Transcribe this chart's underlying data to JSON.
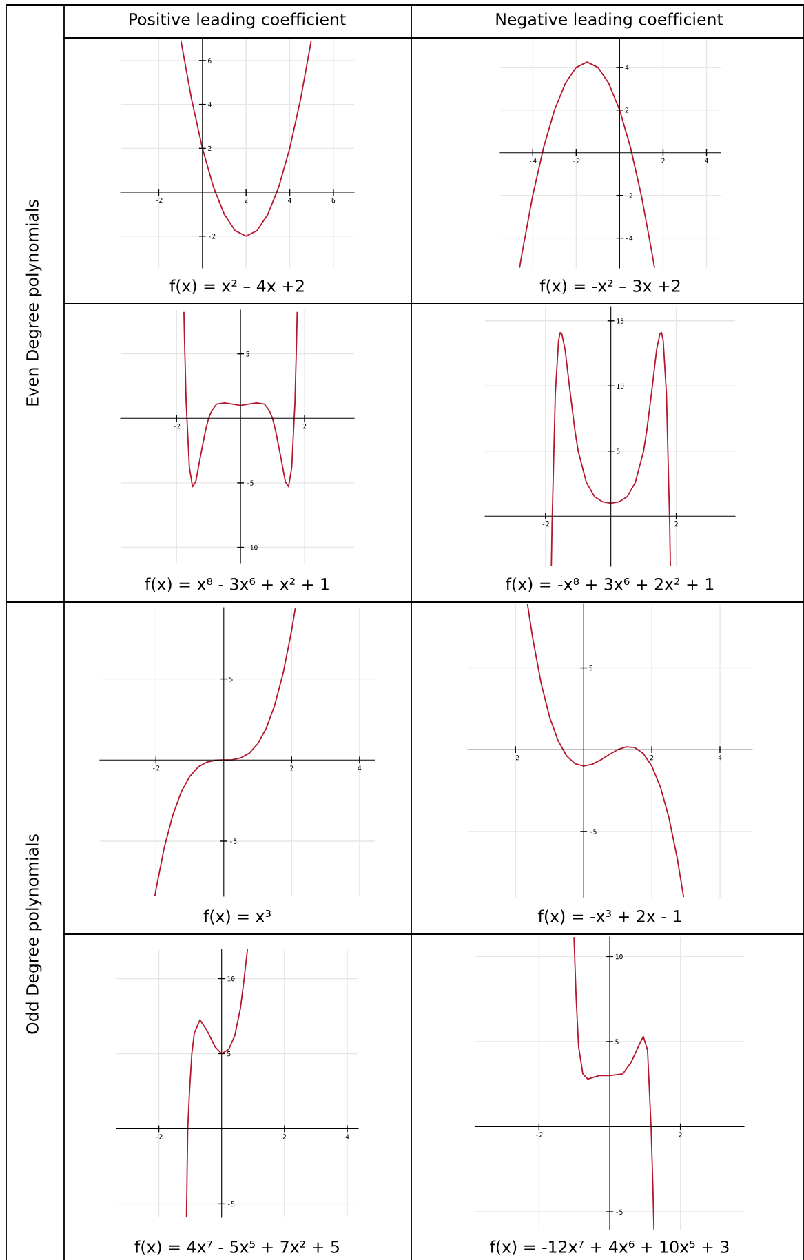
{
  "chart_data": [
    {
      "type": "other",
      "annotations": [
        "Positive leading coefficient",
        "Negative leading coefficient",
        "Even Degree polynomials",
        "Odd Degree polynomials"
      ]
    },
    {
      "type": "line",
      "xlabel": "f(x) = x² – 4x +2",
      "xlim": [
        -3.75,
        6.95
      ],
      "ylim": [
        -3.45,
        7.0
      ],
      "xticks": [
        -2,
        2,
        4,
        6
      ],
      "yticks": [
        -2,
        2,
        4,
        6
      ],
      "grid": true,
      "x": [
        -0.98,
        -0.5,
        0,
        0.5,
        1,
        1.5,
        2,
        2.5,
        3,
        3.5,
        4,
        4.5,
        4.98
      ],
      "series": [
        {
          "color": "#b5162e",
          "values": [
            6.88,
            4.25,
            2,
            0.25,
            -1,
            -1.75,
            -2,
            -1.75,
            -1,
            0.25,
            2,
            4.25,
            6.88
          ]
        }
      ]
    },
    {
      "type": "line",
      "xlabel": "f(x) = -x² – 3x +2",
      "xlim": [
        -5.5,
        4.65
      ],
      "ylim": [
        -5.4,
        5.35
      ],
      "xticks": [
        -4,
        -2,
        2,
        4
      ],
      "yticks": [
        -4,
        -2,
        2,
        4
      ],
      "grid": true,
      "x": [
        -4.6,
        -4.5,
        -4,
        -3.5,
        -3,
        -2.5,
        -2,
        -1.5,
        -1,
        -0.5,
        0,
        0.5,
        1,
        1.5,
        1.6
      ],
      "series": [
        {
          "color": "#b5162e",
          "values": [
            -5.36,
            -4.75,
            -2,
            0.25,
            2,
            3.25,
            4,
            4.25,
            4,
            3.25,
            2,
            0.25,
            -2,
            -4.75,
            -5.36
          ]
        }
      ]
    },
    {
      "type": "line",
      "xlabel": "f(x) = x⁸ - 3x⁶ + x² + 1",
      "xlim": [
        -3.75,
        3.55
      ],
      "ylim": [
        -11.2,
        8.4
      ],
      "xticks": [
        -2,
        2
      ],
      "yticks": [
        -10,
        -5,
        5
      ],
      "grid": true,
      "x": [
        -1.77,
        -1.75,
        -1.7,
        -1.6,
        -1.5,
        -1.4,
        -1.25,
        -1.1,
        -1,
        -0.9,
        -0.75,
        -0.5,
        -0.25,
        0,
        0.25,
        0.5,
        0.75,
        0.9,
        1,
        1.1,
        1.25,
        1.4,
        1.5,
        1.6,
        1.7,
        1.75,
        1.77
      ],
      "series": [
        {
          "color": "#b5162e",
          "values": [
            8.2,
            5.9,
            1.2,
            -3.8,
            -5.3,
            -4.9,
            -2.9,
            -1.0,
            0,
            0.6,
            1.1,
            1.2,
            1.1,
            1,
            1.1,
            1.2,
            1.1,
            0.6,
            0,
            -1.0,
            -2.9,
            -4.9,
            -5.3,
            -3.8,
            1.2,
            5.9,
            8.2
          ]
        }
      ]
    },
    {
      "type": "line",
      "xlabel": "f(x) = -x⁸ + 3x⁶ + 2x² + 1",
      "xlim": [
        -3.85,
        3.8
      ],
      "ylim": [
        -3.85,
        16.1
      ],
      "xticks": [
        -2,
        2
      ],
      "yticks": [
        5,
        10,
        15
      ],
      "grid": true,
      "x": [
        -1.82,
        -1.8,
        -1.7,
        -1.6,
        -1.55,
        -1.5,
        -1.4,
        -1.25,
        -1.1,
        -1,
        -0.75,
        -0.5,
        -0.25,
        0,
        0.25,
        0.5,
        0.75,
        1,
        1.1,
        1.25,
        1.4,
        1.5,
        1.55,
        1.6,
        1.7,
        1.8,
        1.82
      ],
      "series": [
        {
          "color": "#b5162e",
          "values": [
            -3.75,
            -0.7,
            9.4,
            13.5,
            14.1,
            14.0,
            12.8,
            9.6,
            6.6,
            5,
            2.6,
            1.5,
            1.1,
            1,
            1.1,
            1.5,
            2.6,
            5,
            6.6,
            9.6,
            12.8,
            14.0,
            14.1,
            13.5,
            9.4,
            -0.7,
            -3.75
          ]
        }
      ]
    },
    {
      "type": "line",
      "xlabel": "f(x) = x³",
      "xlim": [
        -3.65,
        4.45
      ],
      "ylim": [
        -8.4,
        9.4
      ],
      "xticks": [
        -2,
        2,
        4
      ],
      "yticks": [
        -5,
        5
      ],
      "grid": true,
      "x": [
        -2.03,
        -2,
        -1.75,
        -1.5,
        -1.25,
        -1,
        -0.75,
        -0.5,
        -0.25,
        0,
        0.25,
        0.5,
        0.75,
        1,
        1.25,
        1.5,
        1.75,
        2,
        2.11
      ],
      "series": [
        {
          "color": "#b5162e",
          "values": [
            -8.37,
            -8,
            -5.36,
            -3.38,
            -1.95,
            -1,
            -0.42,
            -0.13,
            -0.02,
            0,
            0.02,
            0.13,
            0.42,
            1,
            1.95,
            3.38,
            5.36,
            8,
            9.39
          ]
        }
      ]
    },
    {
      "type": "line",
      "xlabel": "f(x) = -x³ + 2x - 1",
      "xlim": [
        -3.4,
        4.95
      ],
      "ylim": [
        -9.05,
        8.9
      ],
      "xticks": [
        -2,
        2,
        4
      ],
      "yticks": [
        -5,
        5
      ],
      "grid": true,
      "x": [
        -1.645,
        -1.5,
        -1.25,
        -1,
        -0.75,
        -0.5,
        -0.25,
        0,
        0.25,
        0.5,
        0.75,
        1,
        1.25,
        1.5,
        1.75,
        2,
        2.25,
        2.5,
        2.75,
        2.93
      ],
      "series": [
        {
          "color": "#b5162e",
          "values": [
            8.86,
            6.88,
            4.08,
            2,
            0.55,
            -0.38,
            -0.86,
            -1,
            -0.89,
            -0.63,
            -0.3,
            0,
            0.17,
            0.13,
            -0.23,
            -1,
            -2.27,
            -4.13,
            -6.67,
            -8.98
          ]
        }
      ]
    },
    {
      "type": "line",
      "xlabel": "f(x) = 4x⁷ - 5x⁵ + 7x² + 5",
      "xlim": [
        -3.35,
        4.35
      ],
      "ylim": [
        -5.9,
        11.95
      ],
      "xticks": [
        -2,
        2,
        4
      ],
      "yticks": [
        -5,
        5,
        10
      ],
      "grid": true,
      "x": [
        -1.12,
        -1.08,
        -1.03,
        -0.95,
        -0.87,
        -0.69,
        -0.46,
        -0.21,
        0,
        0.23,
        0.42,
        0.6,
        0.71,
        0.82
      ],
      "series": [
        {
          "color": "#b5162e",
          "values": [
            -5.88,
            0,
            2.24,
            5,
            6.37,
            7.25,
            6.52,
            5.45,
            5,
            5.3,
            6.21,
            8.05,
            9.88,
            11.9
          ]
        }
      ]
    },
    {
      "type": "line",
      "xlabel": "f(x) = -12x⁷ + 4x⁶ + 10x⁵ + 3",
      "xlim": [
        -3.8,
        3.8
      ],
      "ylim": [
        -6.05,
        11.15
      ],
      "xticks": [
        -2,
        2
      ],
      "yticks": [
        -5,
        5,
        10
      ],
      "grid": true,
      "x": [
        -1.01,
        -0.95,
        -0.88,
        -0.76,
        -0.62,
        -0.3,
        0,
        0.37,
        0.61,
        0.83,
        0.95,
        1.07,
        1.17,
        1.22,
        1.25
      ],
      "series": [
        {
          "color": "#b5162e",
          "values": [
            11.1,
            7.6,
            4.7,
            3.1,
            2.8,
            3.0,
            3.0,
            3.1,
            3.8,
            4.8,
            5.3,
            4.5,
            0,
            -3.4,
            -6.0
          ]
        }
      ]
    }
  ]
}
